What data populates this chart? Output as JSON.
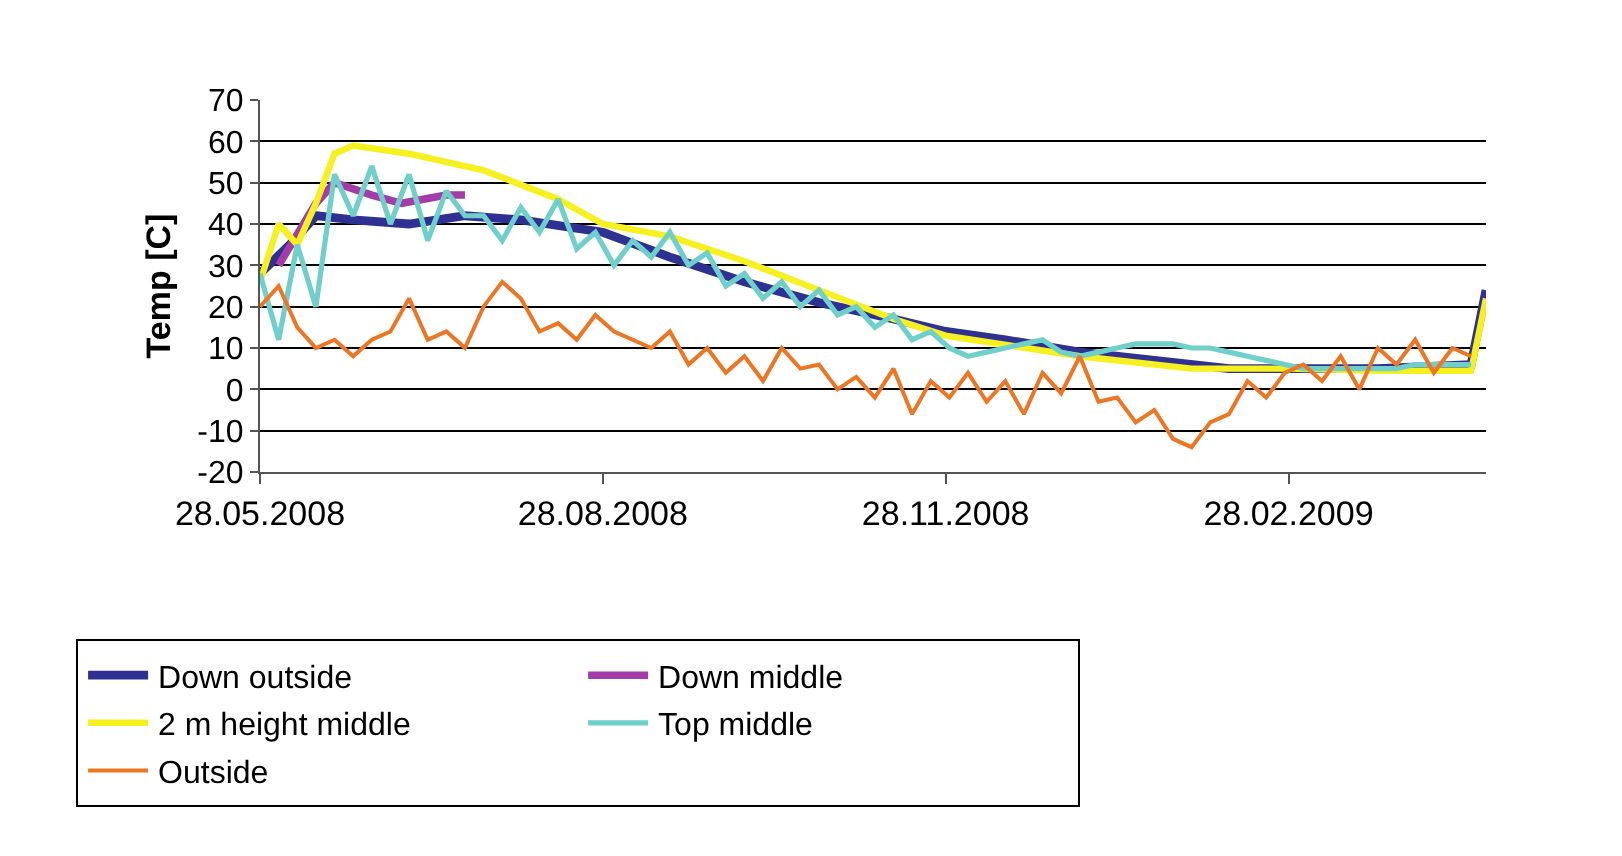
{
  "chart_data": {
    "type": "line",
    "ylabel": "Temp [C]",
    "x": [
      "2008-05-28",
      "2008-06-02",
      "2008-06-07",
      "2008-06-12",
      "2008-06-17",
      "2008-06-22",
      "2008-06-27",
      "2008-07-02",
      "2008-07-07",
      "2008-07-12",
      "2008-07-17",
      "2008-07-22",
      "2008-07-27",
      "2008-08-01",
      "2008-08-06",
      "2008-08-11",
      "2008-08-16",
      "2008-08-21",
      "2008-08-26",
      "2008-08-31",
      "2008-09-05",
      "2008-09-10",
      "2008-09-15",
      "2008-09-20",
      "2008-09-25",
      "2008-09-30",
      "2008-10-05",
      "2008-10-10",
      "2008-10-15",
      "2008-10-20",
      "2008-10-25",
      "2008-10-30",
      "2008-11-04",
      "2008-11-09",
      "2008-11-14",
      "2008-11-19",
      "2008-11-24",
      "2008-11-29",
      "2008-12-04",
      "2008-12-09",
      "2008-12-14",
      "2008-12-19",
      "2008-12-24",
      "2008-12-29",
      "2009-01-03",
      "2009-01-08",
      "2009-01-13",
      "2009-01-18",
      "2009-01-23",
      "2009-01-28",
      "2009-02-02",
      "2009-02-07",
      "2009-02-12",
      "2009-02-17",
      "2009-02-22",
      "2009-02-27",
      "2009-03-04",
      "2009-03-09",
      "2009-03-14",
      "2009-03-19",
      "2009-03-24",
      "2009-03-29",
      "2009-04-03",
      "2009-04-08",
      "2009-04-13",
      "2009-04-18"
    ],
    "series": [
      {
        "name": "Down outside",
        "color": "#2e3192",
        "x": [
          "2008-05-28",
          "2008-06-05",
          "2008-06-12",
          "2008-06-22",
          "2008-07-07",
          "2008-07-22",
          "2008-08-06",
          "2008-08-28",
          "2008-09-15",
          "2008-10-05",
          "2008-10-25",
          "2008-11-14",
          "2008-11-28",
          "2008-12-14",
          "2009-01-03",
          "2009-01-23",
          "2009-02-12",
          "2009-02-28",
          "2009-03-24",
          "2009-04-18",
          "2009-04-22"
        ],
        "values": [
          28,
          35,
          42,
          41,
          40,
          42,
          41,
          38,
          32,
          26,
          21,
          17,
          14,
          12,
          9,
          7,
          5,
          5,
          5,
          6,
          24
        ]
      },
      {
        "name": "Down middle",
        "color": "#a33ca8",
        "x": [
          "2008-06-02",
          "2008-06-12",
          "2008-06-17",
          "2008-06-27",
          "2008-07-05",
          "2008-07-17",
          "2008-07-22"
        ],
        "values": [
          30,
          45,
          50,
          47,
          45,
          47,
          47
        ]
      },
      {
        "name": "2 m height middle",
        "color": "#f5f01e",
        "x": [
          "2008-05-28",
          "2008-06-02",
          "2008-06-07",
          "2008-06-12",
          "2008-06-17",
          "2008-06-22",
          "2008-07-07",
          "2008-07-27",
          "2008-08-16",
          "2008-08-28",
          "2008-09-15",
          "2008-10-05",
          "2008-10-25",
          "2008-11-14",
          "2008-11-28",
          "2009-01-03",
          "2009-02-02",
          "2009-02-28",
          "2009-03-24",
          "2009-04-18",
          "2009-04-22"
        ],
        "values": [
          26,
          40,
          35,
          45,
          57,
          59,
          57,
          53,
          46,
          40,
          37,
          31,
          24,
          17,
          13,
          8,
          5,
          5,
          4.5,
          4.5,
          22
        ]
      },
      {
        "name": "Top middle",
        "color": "#6fcfcb",
        "values": [
          28,
          12,
          35,
          20,
          52,
          42,
          54,
          40,
          52,
          36,
          48,
          42,
          42,
          36,
          44,
          38,
          46,
          34,
          38,
          30,
          36,
          32,
          38,
          30,
          33,
          25,
          28,
          22,
          26,
          20,
          24,
          18,
          20,
          15,
          18,
          12,
          14,
          10,
          8,
          9,
          10,
          11,
          12,
          9,
          8,
          9,
          10,
          11,
          11,
          11,
          10,
          10,
          9,
          8,
          7,
          6,
          5,
          5,
          5,
          5,
          5,
          5,
          6,
          6,
          6,
          6
        ]
      },
      {
        "name": "Outside",
        "color": "#ee7623",
        "values": [
          20,
          25,
          15,
          10,
          12,
          8,
          12,
          14,
          22,
          12,
          14,
          10,
          20,
          26,
          22,
          14,
          16,
          12,
          18,
          14,
          12,
          10,
          14,
          6,
          10,
          4,
          8,
          2,
          10,
          5,
          6,
          0,
          3,
          -2,
          5,
          -6,
          2,
          -2,
          4,
          -3,
          2,
          -6,
          4,
          -1,
          8,
          -3,
          -2,
          -8,
          -5,
          -12,
          -14,
          -8,
          -6,
          2,
          -2,
          4,
          6,
          2,
          8,
          0,
          10,
          6,
          12,
          4,
          10,
          8
        ]
      }
    ],
    "xlim": [
      "2008-05-28",
      "2009-04-22"
    ],
    "xticks": [
      {
        "value": "2008-05-28",
        "label": "28.05.2008"
      },
      {
        "value": "2008-08-28",
        "label": "28.08.2008"
      },
      {
        "value": "2008-11-28",
        "label": "28.11.2008"
      },
      {
        "value": "2009-02-28",
        "label": "28.02.2009"
      }
    ],
    "ylim": [
      -20,
      70
    ],
    "yticks": [
      -20,
      -10,
      0,
      10,
      20,
      30,
      40,
      50,
      60,
      70
    ],
    "grid": "y",
    "legend": "bottom",
    "marker": "none",
    "line_style": "solid"
  }
}
